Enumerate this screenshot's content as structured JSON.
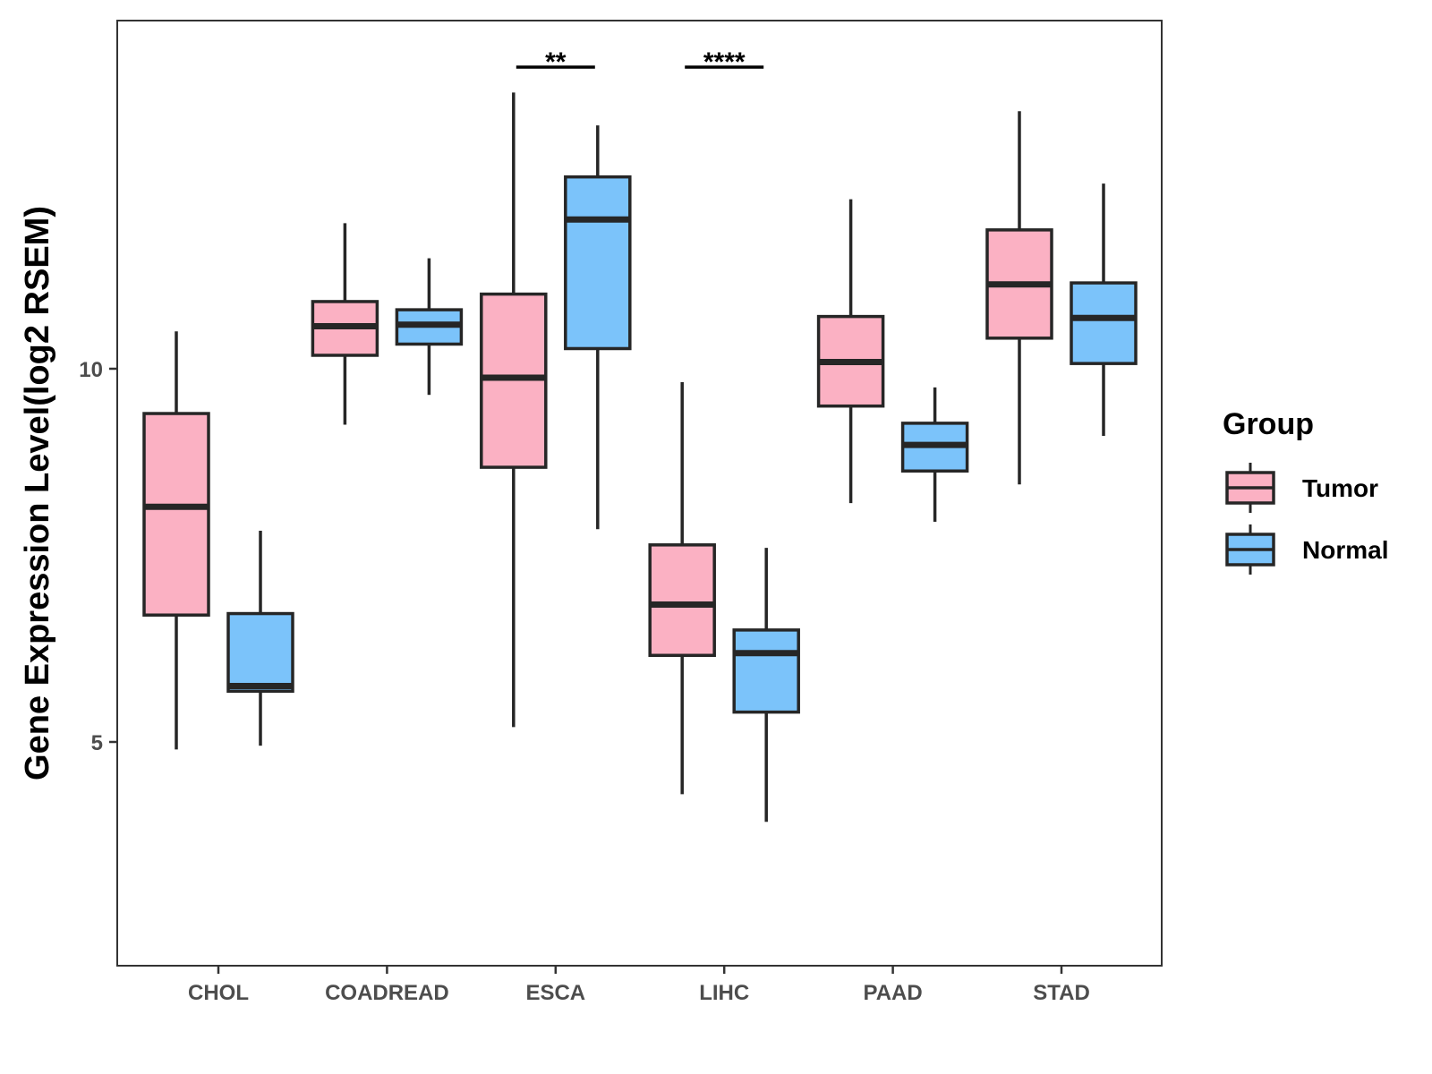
{
  "chart_data": {
    "type": "boxplot",
    "title": "",
    "xlabel": "",
    "ylabel": "Gene Expression Level(log2 RSEM)",
    "ylim": [
      2.0,
      14.6
    ],
    "yticks": [
      5,
      10
    ],
    "grid": false,
    "categories": [
      "CHOL",
      "COADREAD",
      "ESCA",
      "LIHC",
      "PAAD",
      "STAD"
    ],
    "series": [
      {
        "name": "Tumor",
        "color": "#fbb1c3",
        "boxes": [
          {
            "whisker_low": 4.9,
            "q1": 6.7,
            "median": 8.15,
            "q3": 9.4,
            "whisker_high": 10.5
          },
          {
            "whisker_low": 9.25,
            "q1": 10.18,
            "median": 10.57,
            "q3": 10.9,
            "whisker_high": 11.95
          },
          {
            "whisker_low": 5.2,
            "q1": 8.68,
            "median": 9.88,
            "q3": 11.0,
            "whisker_high": 13.7
          },
          {
            "whisker_low": 4.3,
            "q1": 6.16,
            "median": 6.84,
            "q3": 7.64,
            "whisker_high": 9.82
          },
          {
            "whisker_low": 8.2,
            "q1": 9.5,
            "median": 10.09,
            "q3": 10.7,
            "whisker_high": 12.27
          },
          {
            "whisker_low": 8.45,
            "q1": 10.41,
            "median": 11.13,
            "q3": 11.86,
            "whisker_high": 13.45
          }
        ]
      },
      {
        "name": "Normal",
        "color": "#7bc3fa",
        "boxes": [
          {
            "whisker_low": 4.95,
            "q1": 5.68,
            "median": 5.75,
            "q3": 6.72,
            "whisker_high": 7.83
          },
          {
            "whisker_low": 9.65,
            "q1": 10.33,
            "median": 10.59,
            "q3": 10.79,
            "whisker_high": 11.48
          },
          {
            "whisker_low": 7.85,
            "q1": 10.27,
            "median": 12.0,
            "q3": 12.57,
            "whisker_high": 13.26
          },
          {
            "whisker_low": 3.93,
            "q1": 5.4,
            "median": 6.19,
            "q3": 6.5,
            "whisker_high": 7.6
          },
          {
            "whisker_low": 7.95,
            "q1": 8.63,
            "median": 8.98,
            "q3": 9.27,
            "whisker_high": 9.75
          },
          {
            "whisker_low": 9.1,
            "q1": 10.07,
            "median": 10.68,
            "q3": 11.15,
            "whisker_high": 12.48
          }
        ]
      }
    ],
    "significance": [
      {
        "category": "ESCA",
        "label": "**"
      },
      {
        "category": "LIHC",
        "label": "****"
      }
    ],
    "legend": {
      "title": "Group",
      "position": "right",
      "entries": [
        "Tumor",
        "Normal"
      ]
    }
  },
  "colors": {
    "tumor": "#fbb1c3",
    "normal": "#7bc3fa",
    "outline": "#262626",
    "tick_text": "#4d4d4d"
  }
}
